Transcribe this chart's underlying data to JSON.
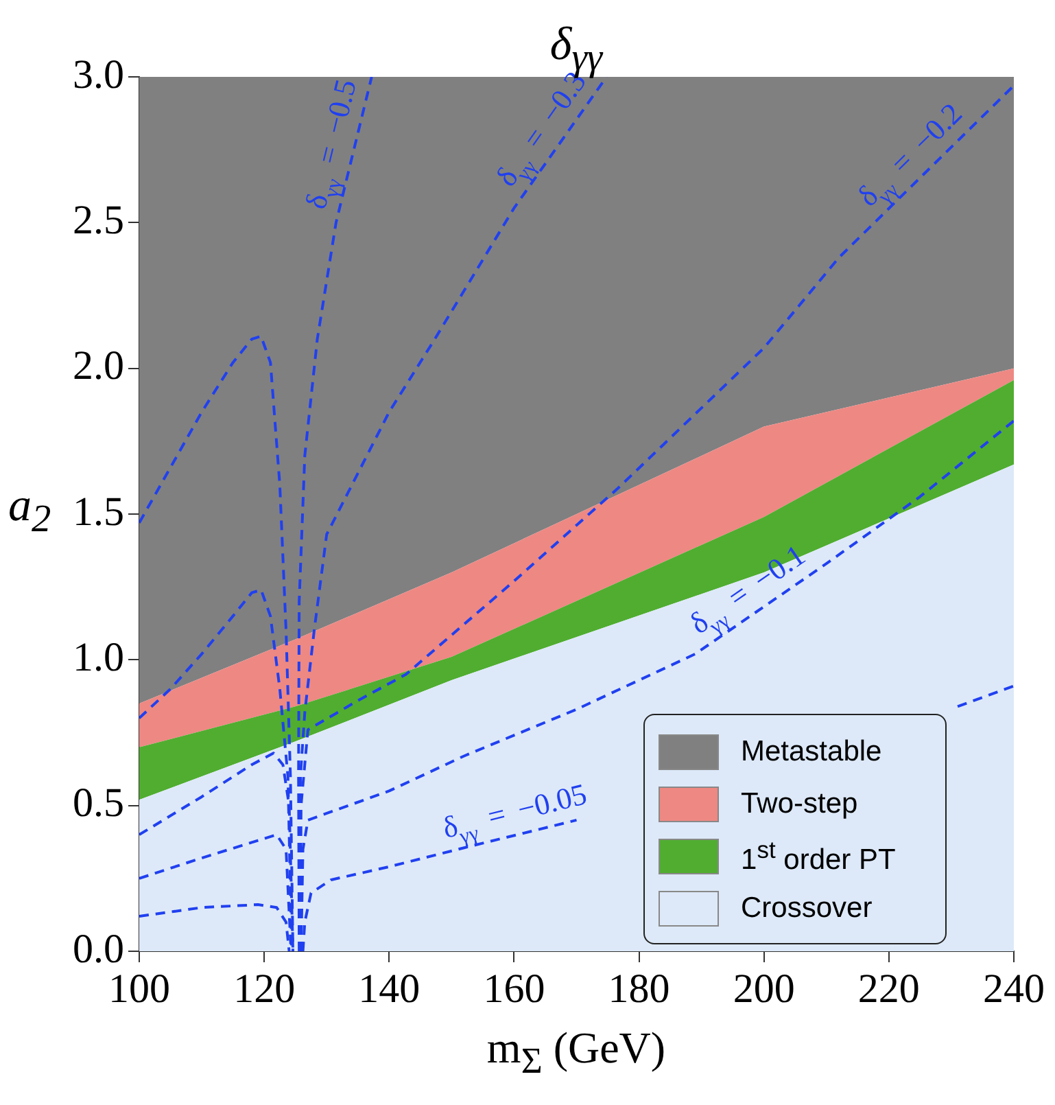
{
  "chart_data": {
    "type": "area",
    "title": "δ$_{γγ}$",
    "xlabel": "m$_{Σ}$ (GeV)",
    "ylabel": "a$_{2}$",
    "stacked": true,
    "x": [
      100,
      125,
      150,
      200,
      240
    ],
    "series": [
      {
        "name": "Crossover",
        "color": "#dde9f8",
        "values": [
          0.52,
          0.72,
          0.93,
          1.3,
          1.67
        ]
      },
      {
        "name": "1$^{st}$ order PT",
        "color": "#50ad30",
        "values": [
          0.18,
          0.12,
          0.08,
          0.19,
          0.29
        ]
      },
      {
        "name": "Two-step",
        "color": "#ee8883",
        "values": [
          0.15,
          0.23,
          0.29,
          0.31,
          0.04
        ]
      },
      {
        "name": "Metastable",
        "color": "#808080",
        "values": [
          2.15,
          1.93,
          1.7,
          1.2,
          1.0
        ]
      },
      {
        "name": "δ$_{γγ}$ = −0.5",
        "type": "line",
        "color": "#2040f0",
        "line_style": "dashed",
        "x": [
          100,
          105,
          110,
          115,
          118,
          119.5,
          121,
          122.5,
          123.5,
          124.2,
          124.6,
          125,
          125.6,
          125.5,
          125.6,
          126.5,
          128.5,
          131.5,
          137.2
        ],
        "values": [
          1.47,
          1.66,
          1.85,
          2.02,
          2.1,
          2.11,
          2.02,
          1.6,
          1.1,
          0.6,
          0,
          null,
          0,
          0.6,
          1.2,
          1.7,
          2.1,
          2.5,
          3.0
        ]
      },
      {
        "name": "δ$_{γγ}$ = −0.3",
        "type": "line",
        "color": "#2040f0",
        "line_style": "dashed",
        "x": [
          100,
          105,
          110,
          115,
          118,
          119.5,
          121,
          122.5,
          123.8,
          124.4,
          125,
          125.7,
          125.8,
          126.5,
          128,
          130,
          140,
          147.3,
          160,
          174.8
        ],
        "values": [
          0.8,
          0.9,
          1.02,
          1.15,
          1.23,
          1.24,
          1.15,
          0.9,
          0.6,
          0,
          null,
          0,
          0.6,
          0.82,
          1.1,
          1.43,
          1.85,
          2.1,
          2.55,
          3.0
        ]
      },
      {
        "name": "δ$_{γγ}$ = −0.2",
        "type": "line",
        "color": "#2040f0",
        "line_style": "dashed",
        "x": [
          100,
          110,
          118,
          121.5,
          123,
          124,
          124.6,
          125,
          125.8,
          125.9,
          127,
          135,
          142.7,
          160,
          176.7,
          200,
          212,
          240
        ],
        "values": [
          0.4,
          0.53,
          0.64,
          0.68,
          0.64,
          0.5,
          0,
          null,
          0,
          0.5,
          0.76,
          0.86,
          0.95,
          1.27,
          1.59,
          2.07,
          2.38,
          2.97
        ]
      },
      {
        "name": "δ$_{γγ}$ = −0.1",
        "type": "line",
        "color": "#2040f0",
        "line_style": "dashed",
        "x": [
          100,
          110,
          119,
          122,
          123.5,
          124.3,
          125,
          125.9,
          126.2,
          127,
          140,
          152,
          170,
          189,
          210,
          225,
          240
        ],
        "values": [
          0.25,
          0.32,
          0.38,
          0.4,
          0.35,
          0,
          null,
          0,
          0.35,
          0.45,
          0.55,
          0.67,
          0.83,
          1.02,
          1.33,
          1.56,
          1.82
        ]
      },
      {
        "name": "δ$_{γγ}$ = −0.05",
        "type": "line",
        "color": "#2040f0",
        "line_style": "dashed",
        "x": [
          100,
          110,
          119,
          122,
          123.5,
          124,
          125,
          126.2,
          126.5,
          127.5,
          130.7,
          140,
          152,
          170,
          189,
          231,
          240
        ],
        "values": [
          0.12,
          0.15,
          0.16,
          0.15,
          0.1,
          0,
          null,
          0,
          0.1,
          0.2,
          0.245,
          0.29,
          0.355,
          0.45,
          null,
          0.84,
          0.91
        ]
      }
    ],
    "xlim": [
      100,
      240
    ],
    "xticks": [
      100,
      120,
      140,
      160,
      180,
      200,
      220,
      240
    ],
    "ylim": [
      0,
      3
    ],
    "yticks": [
      {
        "value": 0,
        "label": "0.0"
      },
      {
        "value": 0.5,
        "label": "0.5"
      },
      {
        "value": 1,
        "label": "1.0"
      },
      {
        "value": 1.5,
        "label": "1.5"
      },
      {
        "value": 2,
        "label": "2.0"
      },
      {
        "value": 2.5,
        "label": "2.5"
      },
      {
        "value": 3,
        "label": "3.0"
      }
    ],
    "grid": false,
    "legend": "bottom right"
  }
}
